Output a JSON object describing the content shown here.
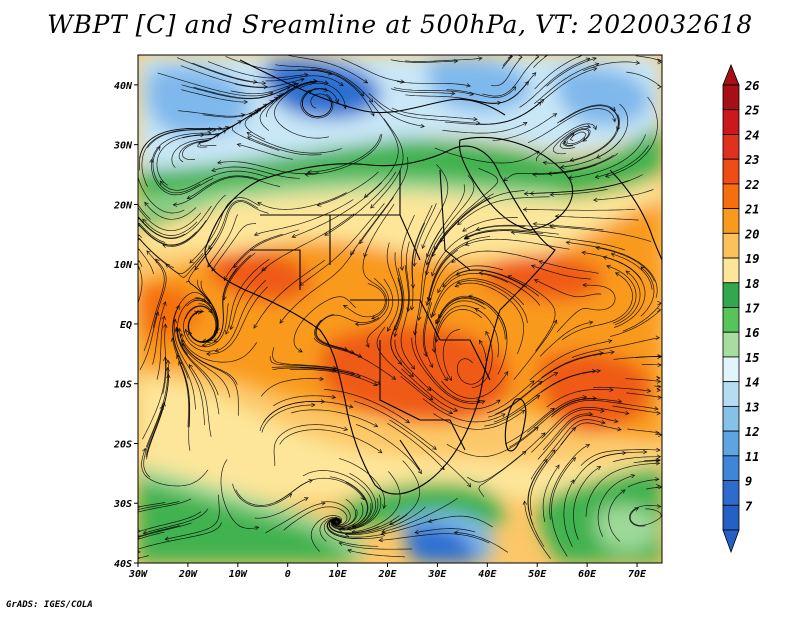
{
  "title": "WBPT [C] and Sreamline at 500hPa, VT: 2020032618",
  "footer": "GrADS: IGES/COLA",
  "map": {
    "lon_range": [
      -30,
      75
    ],
    "lat_range": [
      -40,
      45
    ],
    "x_ticks": [
      {
        "lon": -30,
        "label": "30W"
      },
      {
        "lon": -20,
        "label": "20W"
      },
      {
        "lon": -10,
        "label": "10W"
      },
      {
        "lon": 0,
        "label": "0"
      },
      {
        "lon": 10,
        "label": "10E"
      },
      {
        "lon": 20,
        "label": "20E"
      },
      {
        "lon": 30,
        "label": "30E"
      },
      {
        "lon": 40,
        "label": "40E"
      },
      {
        "lon": 50,
        "label": "50E"
      },
      {
        "lon": 60,
        "label": "60E"
      },
      {
        "lon": 70,
        "label": "70E"
      }
    ],
    "y_ticks": [
      {
        "lat": 40,
        "label": "40N"
      },
      {
        "lat": 30,
        "label": "30N"
      },
      {
        "lat": 20,
        "label": "20N"
      },
      {
        "lat": 10,
        "label": "10N"
      },
      {
        "lat": 0,
        "label": "EQ"
      },
      {
        "lat": -10,
        "label": "10S"
      },
      {
        "lat": -20,
        "label": "20S"
      },
      {
        "lat": -30,
        "label": "30S"
      },
      {
        "lat": -40,
        "label": "40S"
      }
    ]
  },
  "colorbar": {
    "unit": "C",
    "levels": [
      {
        "label": "26",
        "color": "#a50f15"
      },
      {
        "label": "25",
        "color": "#cb181d"
      },
      {
        "label": "24",
        "color": "#e0301e"
      },
      {
        "label": "23",
        "color": "#ef4d14"
      },
      {
        "label": "22",
        "color": "#f56f0f"
      },
      {
        "label": "21",
        "color": "#f99a1c"
      },
      {
        "label": "20",
        "color": "#fcc05c"
      },
      {
        "label": "19",
        "color": "#fde69a"
      },
      {
        "label": "18",
        "color": "#31a84d"
      },
      {
        "label": "17",
        "color": "#56c45b"
      },
      {
        "label": "16",
        "color": "#a7dd9f"
      },
      {
        "label": "15",
        "color": "#e2f5fb"
      },
      {
        "label": "14",
        "color": "#b4dcf2"
      },
      {
        "label": "13",
        "color": "#86c1ea"
      },
      {
        "label": "12",
        "color": "#5ea3e2"
      },
      {
        "label": "11",
        "color": "#3e86d8"
      },
      {
        "label": "9",
        "color": "#2d6ccd"
      },
      {
        "label": "7",
        "color": "#2460c5"
      }
    ],
    "top_triangle_color": "#a50f15",
    "bottom_triangle_color": "#2460c5"
  },
  "colors": {
    "cold_blue": "#2c6fd1",
    "mid_blue": "#7fb8ec",
    "light_blue": "#c9e7f7",
    "green": "#3fb24f",
    "light_green": "#9fd99a",
    "yellow": "#fde69a",
    "light_orange": "#fcc768",
    "orange": "#f99a1c",
    "dark_orange": "#ef5a14",
    "streamline": "#000000"
  }
}
